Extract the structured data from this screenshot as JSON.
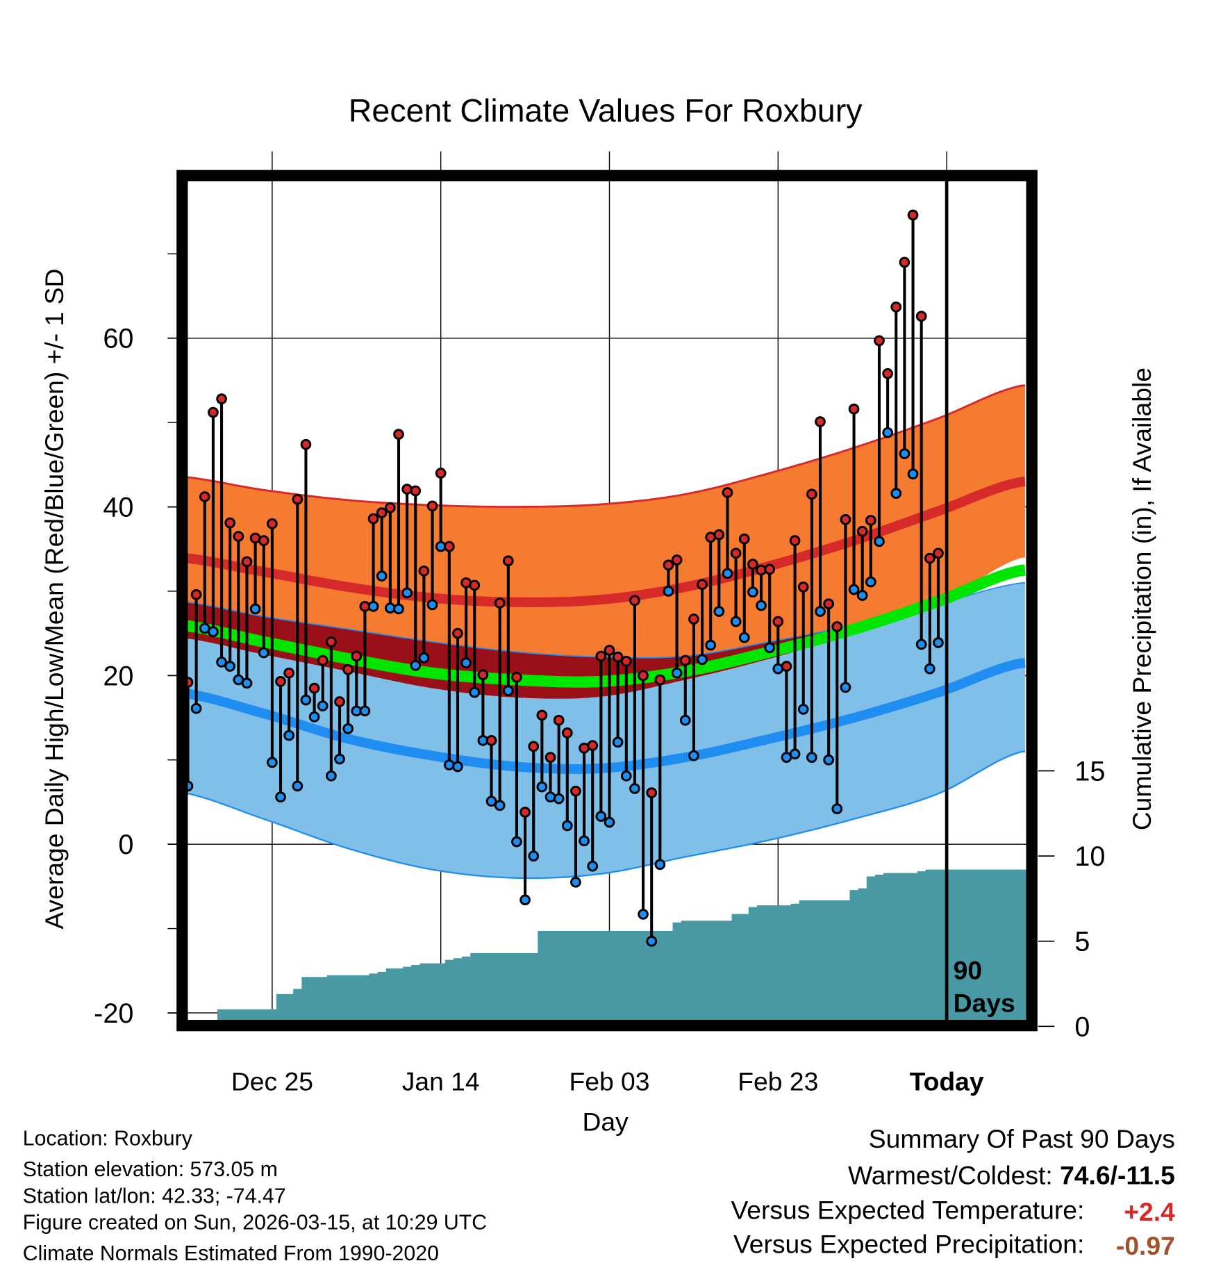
{
  "chart_data": {
    "type": "line",
    "title": "Recent Climate Values For Roxbury",
    "xlabel": "Day",
    "ylabel": "Average Daily High/Low/Mean (Red/Blue/Green) +/- 1 SD",
    "y2label": "Cumulative Precipitation (in), If Available",
    "ylim": [
      -20,
      79
    ],
    "y2lim": [
      0,
      15
    ],
    "yticks": [
      60,
      40,
      20,
      0,
      -20
    ],
    "y2ticks": [
      0,
      5,
      10,
      15
    ],
    "xticks": [
      {
        "label": "Dec 25",
        "day": 10
      },
      {
        "label": "Jan 14",
        "day": 30
      },
      {
        "label": "Feb 03",
        "day": 50
      },
      {
        "label": "Feb 23",
        "day": 70
      },
      {
        "label": "Today",
        "day": 90
      }
    ],
    "first_day": "Dec 15",
    "today_marker": {
      "line1": "90",
      "line2": "Days"
    },
    "observed_high": [
      19.2,
      29.6,
      41.2,
      51.2,
      52.8,
      38.1,
      36.5,
      33.5,
      36.3,
      36.0,
      38.0,
      19.3,
      20.3,
      40.9,
      47.4,
      18.5,
      21.8,
      24.0,
      16.9,
      20.7,
      22.3,
      28.2,
      38.6,
      39.3,
      39.9,
      48.6,
      42.1,
      41.9,
      32.4,
      40.1,
      44.0,
      35.3,
      25.0,
      31.0,
      30.7,
      20.1,
      12.3,
      28.6,
      33.6,
      19.8,
      3.8,
      11.6,
      15.3,
      10.3,
      14.7,
      13.2,
      6.3,
      11.4,
      11.7,
      22.3,
      23.0,
      22.2,
      21.7,
      28.9,
      20.0,
      6.1,
      19.5,
      33.1,
      33.7,
      21.8,
      26.7,
      30.8,
      36.4,
      36.7,
      41.7,
      34.5,
      36.2,
      33.2,
      32.5,
      32.6,
      26.4,
      21.1,
      36.0,
      30.5,
      41.5,
      50.1,
      28.5,
      25.8,
      38.5,
      51.6,
      37.1,
      38.4,
      59.7,
      55.8,
      63.7,
      69.0,
      74.6,
      62.6,
      33.9,
      34.5
    ],
    "observed_low": [
      6.9,
      16.1,
      25.6,
      25.2,
      21.6,
      21.1,
      19.5,
      19.1,
      27.9,
      22.7,
      9.7,
      5.6,
      12.9,
      6.9,
      17.1,
      15.1,
      16.4,
      8.1,
      10.1,
      13.7,
      15.8,
      15.8,
      28.2,
      31.8,
      28.0,
      27.9,
      29.8,
      21.2,
      22.1,
      28.4,
      35.3,
      9.4,
      9.2,
      21.5,
      18.0,
      12.3,
      5.1,
      4.6,
      18.2,
      0.3,
      -6.6,
      -1.4,
      6.8,
      5.6,
      5.4,
      2.2,
      -4.5,
      0.4,
      -2.6,
      3.3,
      2.6,
      12.1,
      8.1,
      6.6,
      -8.3,
      -11.5,
      -2.4,
      30.0,
      20.3,
      14.7,
      10.5,
      21.9,
      23.6,
      27.6,
      32.1,
      26.4,
      24.5,
      29.9,
      28.3,
      23.3,
      20.8,
      10.3,
      10.7,
      16.0,
      10.3,
      27.6,
      10.0,
      4.2,
      18.6,
      30.2,
      29.5,
      31.1,
      35.9,
      48.8,
      41.6,
      46.3,
      43.9,
      23.7,
      20.8,
      23.9
    ],
    "cumulative_precip": [
      0,
      0,
      0,
      0,
      1.0,
      1.0,
      1.0,
      1.0,
      1.0,
      1.0,
      1.0,
      1.9,
      1.9,
      2.2,
      2.9,
      2.9,
      2.9,
      3.0,
      3.0,
      3.0,
      3.0,
      3.0,
      3.1,
      3.2,
      3.4,
      3.4,
      3.5,
      3.6,
      3.7,
      3.7,
      3.7,
      3.9,
      4.0,
      4.1,
      4.3,
      4.3,
      4.3,
      4.3,
      4.3,
      4.3,
      4.3,
      4.3,
      5.6,
      5.6,
      5.6,
      5.6,
      5.6,
      5.6,
      5.6,
      5.6,
      5.6,
      5.6,
      5.6,
      5.6,
      5.6,
      5.6,
      5.6,
      5.6,
      6.1,
      6.2,
      6.2,
      6.2,
      6.2,
      6.2,
      6.2,
      6.6,
      6.6,
      7.0,
      7.1,
      7.1,
      7.1,
      7.1,
      7.2,
      7.4,
      7.4,
      7.4,
      7.4,
      7.4,
      7.4,
      8.0,
      8.1,
      8.8,
      8.9,
      9.0,
      9.0,
      9.0,
      9.0,
      9.1,
      9.2,
      9.2
    ],
    "normals": {
      "days": [
        -1,
        9,
        19,
        29,
        39,
        49,
        59,
        69,
        79,
        89,
        99
      ],
      "high_mean": [
        34,
        32.3,
        30.5,
        29.2,
        28.7,
        29,
        30.5,
        33,
        36,
        39.5,
        43
      ],
      "high_upper": [
        43.6,
        42,
        40.8,
        40.2,
        40,
        40.3,
        41.5,
        44,
        47,
        50.5,
        54.4
      ],
      "high_lower": [
        24.5,
        22.5,
        20.5,
        18.5,
        17.4,
        17.5,
        19.5,
        22,
        25,
        28.5,
        34
      ],
      "low_mean": [
        18,
        15.5,
        12.5,
        10.5,
        9.2,
        9,
        10.3,
        12.5,
        15,
        18,
        21.5
      ],
      "low_upper": [
        28.8,
        27,
        25.5,
        24,
        22.8,
        22.2,
        22.3,
        24,
        26,
        28.5,
        31
      ],
      "low_lower": [
        6.2,
        3,
        -0.5,
        -3,
        -4,
        -3.5,
        -1.5,
        0.5,
        3,
        6,
        11
      ],
      "mean": [
        26,
        24,
        22,
        20.3,
        19.5,
        19.3,
        20.5,
        22.8,
        25.5,
        28.8,
        32.5
      ]
    },
    "colors": {
      "high_band": "#f47b30",
      "high_line": "#d62a2a",
      "low_band": "#80c0e8",
      "low_line": "#1f8ef0",
      "overlap": "#9a1018",
      "mean_line": "#00e600",
      "precip": "#4899a4",
      "high_dot": "#d62a2a",
      "low_dot": "#1f8ef0"
    }
  },
  "footer": {
    "location": "Location: Roxbury",
    "elevation": "Station elevation: 573.05 m",
    "latlon": "Station lat/lon: 42.33; -74.47",
    "created": "Figure created on Sun, 2026-03-15, at 10:29 UTC",
    "normals": "Climate Normals Estimated From 1990-2020"
  },
  "summary": {
    "title": "Summary Of Past 90 Days",
    "warmest_label": "Warmest/Coldest: ",
    "warmest_value": "74.6/-11.5",
    "temp_label": "Versus Expected Temperature:",
    "temp_value": "+2.4",
    "temp_color": "#d62a2a",
    "precip_label": "Versus Expected Precipitation:",
    "precip_value": "-0.97",
    "precip_color": "#a0522d"
  }
}
